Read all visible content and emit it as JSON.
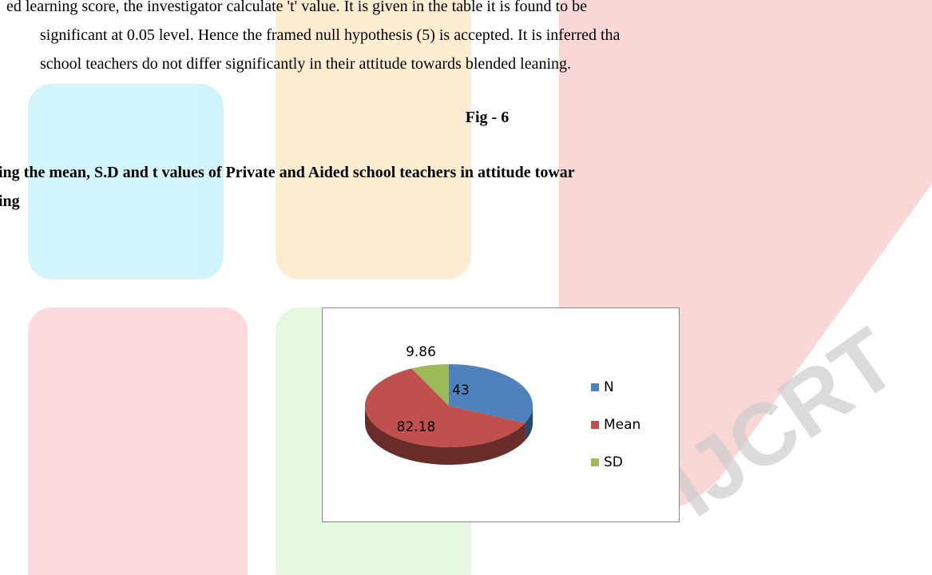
{
  "body_text": [
    "ed learning score, the investigator calculate 't' value. It is given in the table it is found to be",
    "significant at 0.05 level. Hence the framed null hypothesis (5) is accepted. It is inferred tha",
    "school teachers do not  differ significantly in their attitude towards blended leaning."
  ],
  "figure_label": "Fig -  6",
  "caption": [
    "ing the mean, S.D and t values of Private and Aided school teachers in attitude towar",
    "ing"
  ],
  "watermark": "IJCRT",
  "chart_data": {
    "type": "pie",
    "categories": [
      "N",
      "Mean",
      "SD"
    ],
    "values": [
      43,
      82.18,
      9.86
    ],
    "colors": [
      "#4f81bd",
      "#c0504d",
      "#9bbb59"
    ],
    "legend": "right"
  }
}
